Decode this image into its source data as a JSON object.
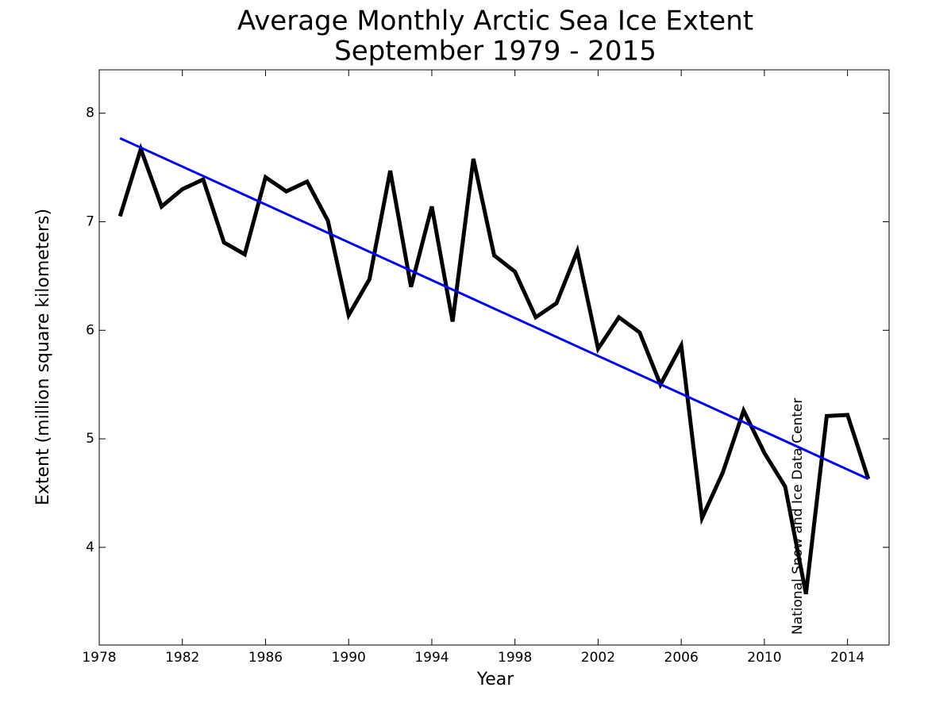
{
  "chart_data": {
    "type": "line",
    "title": "Average Monthly Arctic Sea Ice Extent",
    "subtitle": "September 1979 - 2015",
    "x_label": "Year",
    "y_label": "Extent (million square kilometers)",
    "annotation": "National Snow and Ice Data Center",
    "x": [
      1979,
      1980,
      1981,
      1982,
      1983,
      1984,
      1985,
      1986,
      1987,
      1988,
      1989,
      1990,
      1991,
      1992,
      1993,
      1994,
      1995,
      1996,
      1997,
      1998,
      1999,
      2000,
      2001,
      2002,
      2003,
      2004,
      2005,
      2006,
      2007,
      2008,
      2009,
      2010,
      2011,
      2012,
      2013,
      2014,
      2015
    ],
    "series": [
      {
        "color": "#000000",
        "values": [
          7.05,
          7.67,
          7.14,
          7.3,
          7.39,
          6.81,
          6.7,
          7.41,
          7.28,
          7.37,
          7.01,
          6.14,
          6.47,
          7.47,
          6.4,
          7.14,
          6.08,
          7.58,
          6.69,
          6.54,
          6.12,
          6.25,
          6.73,
          5.83,
          6.12,
          5.98,
          5.5,
          5.86,
          4.27,
          4.69,
          5.26,
          4.87,
          4.56,
          3.57,
          5.21,
          5.22,
          4.63
        ]
      },
      {
        "color": "#0000ff",
        "x": [
          1979,
          2015
        ],
        "values": [
          7.77,
          4.63
        ]
      }
    ],
    "xlim": [
      1978,
      2016
    ],
    "ylim": [
      3.1,
      8.4
    ],
    "xticks": [
      1978,
      1982,
      1986,
      1990,
      1994,
      1998,
      2002,
      2006,
      2010,
      2014
    ],
    "yticks": [
      4,
      5,
      6,
      7,
      8
    ]
  }
}
